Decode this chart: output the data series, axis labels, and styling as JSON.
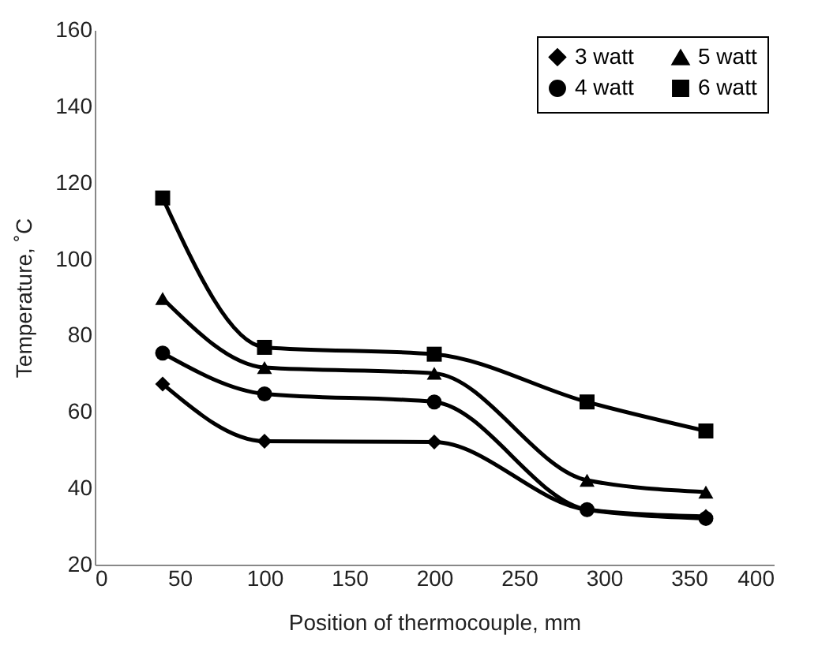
{
  "chart_data": {
    "type": "line",
    "xlabel": "Position of thermocouple, mm",
    "ylabel": "Temperature, ˚C",
    "x": [
      40,
      100,
      200,
      290,
      360
    ],
    "series": [
      {
        "name": "3 watt",
        "color": "#000000",
        "marker": "diamond",
        "values": [
          67.3,
          52.3,
          52.1,
          34.4,
          32.6
        ]
      },
      {
        "name": "4 watt",
        "color": "#000000",
        "marker": "circle",
        "values": [
          75.4,
          64.7,
          62.6,
          34.4,
          32.1
        ]
      },
      {
        "name": "5 watt",
        "color": "#000000",
        "marker": "triangle",
        "values": [
          89.7,
          71.6,
          70.1,
          42.1,
          39
        ]
      },
      {
        "name": "6 watt",
        "color": "#000000",
        "marker": "square",
        "values": [
          116,
          76.9,
          75.1,
          62.6,
          55
        ]
      }
    ],
    "xlim": [
      0,
      400
    ],
    "xticks": [
      0,
      50,
      100,
      150,
      200,
      250,
      300,
      350,
      400
    ],
    "ylim": [
      20,
      160
    ],
    "yticks": [
      20,
      40,
      60,
      80,
      100,
      120,
      140,
      160
    ],
    "grid": false,
    "legend": "top right",
    "line_style": "solid"
  }
}
